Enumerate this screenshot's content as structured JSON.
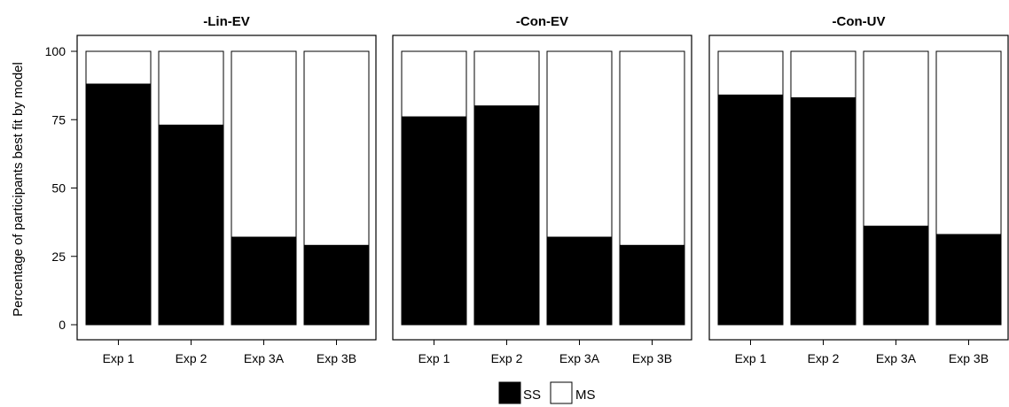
{
  "chart_data": {
    "type": "bar",
    "stacked": true,
    "ylabel": "Percentage of participants best fit by model",
    "ylim": [
      0,
      100
    ],
    "yticks": [
      0,
      25,
      50,
      75,
      100
    ],
    "categories": [
      "Exp 1",
      "Exp 2",
      "Exp 3A",
      "Exp 3B"
    ],
    "legend": {
      "placement": "bottom",
      "entries": [
        {
          "name": "SS",
          "color": "#000000"
        },
        {
          "name": "MS",
          "color": "#ffffff"
        }
      ]
    },
    "panels": [
      {
        "title": "-Lin-EV",
        "series": [
          {
            "name": "SS",
            "values": [
              88,
              73,
              32,
              29
            ]
          },
          {
            "name": "MS",
            "values": [
              12,
              27,
              68,
              71
            ]
          }
        ]
      },
      {
        "title": "-Con-EV",
        "series": [
          {
            "name": "SS",
            "values": [
              76,
              80,
              32,
              29
            ]
          },
          {
            "name": "MS",
            "values": [
              24,
              20,
              68,
              71
            ]
          }
        ]
      },
      {
        "title": "-Con-UV",
        "series": [
          {
            "name": "SS",
            "values": [
              84,
              83,
              36,
              33
            ]
          },
          {
            "name": "MS",
            "values": [
              16,
              17,
              64,
              67
            ]
          }
        ]
      }
    ]
  }
}
